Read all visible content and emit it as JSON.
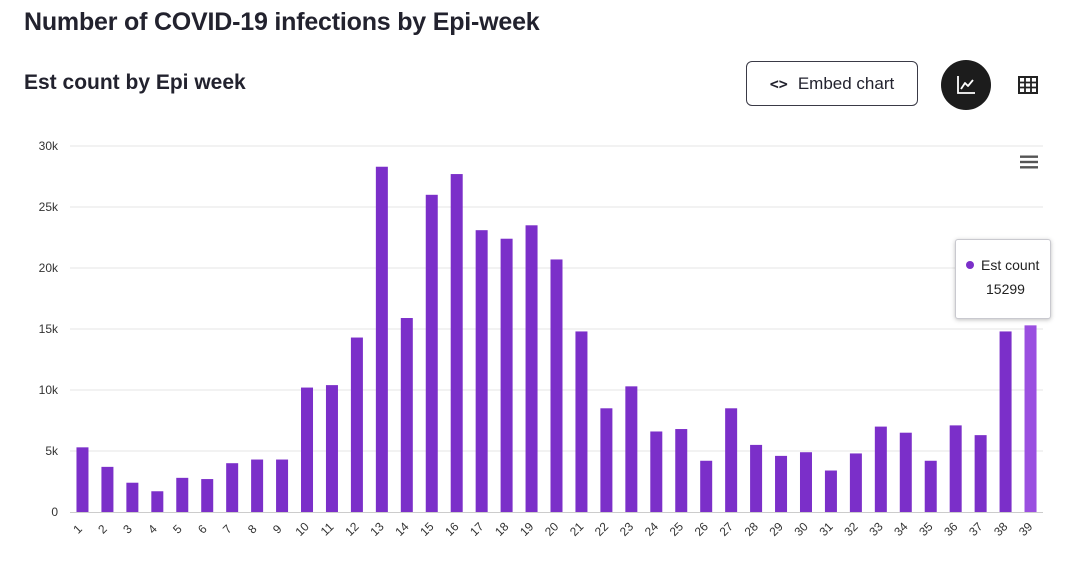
{
  "page": {
    "title": "Number of COVID-19 infections by Epi-week"
  },
  "chart_section": {
    "title": "Est count by Epi week",
    "embed_label": "Embed chart",
    "embed_icon": "code-icon",
    "view_chart_icon": "line-chart-icon",
    "view_table_icon": "table-grid-icon",
    "menu_icon": "hamburger-menu-icon"
  },
  "colors": {
    "bar": "#7b2fc9",
    "bar_highlight": "#9a4fe0",
    "gridline": "#e6e6e6",
    "axis": "#cccccc"
  },
  "tooltip": {
    "series_name": "Est count",
    "value": "15299"
  },
  "chart_data": {
    "type": "bar",
    "title": "",
    "xlabel": "",
    "ylabel": "",
    "ylim": [
      0,
      30000
    ],
    "yticks": [
      0,
      5000,
      10000,
      15000,
      20000,
      25000,
      30000
    ],
    "ytick_labels": [
      "0",
      "5k",
      "10k",
      "15k",
      "20k",
      "25k",
      "30k"
    ],
    "grid": true,
    "highlighted_category": "39",
    "categories": [
      "1",
      "2",
      "3",
      "4",
      "5",
      "6",
      "7",
      "8",
      "9",
      "10",
      "11",
      "12",
      "13",
      "14",
      "15",
      "16",
      "17",
      "18",
      "19",
      "20",
      "21",
      "22",
      "23",
      "24",
      "25",
      "26",
      "27",
      "28",
      "29",
      "30",
      "31",
      "32",
      "33",
      "34",
      "35",
      "36",
      "37",
      "38",
      "39"
    ],
    "series": [
      {
        "name": "Est count",
        "values": [
          5300,
          3700,
          2400,
          1700,
          2800,
          2700,
          4000,
          4300,
          4300,
          10200,
          10400,
          14300,
          28300,
          15900,
          26000,
          27700,
          23100,
          22400,
          23500,
          20700,
          14800,
          8500,
          10300,
          6600,
          6800,
          4200,
          8500,
          5500,
          4600,
          4900,
          3400,
          4800,
          7000,
          6500,
          4200,
          7100,
          6300,
          14800,
          15299
        ]
      }
    ]
  }
}
